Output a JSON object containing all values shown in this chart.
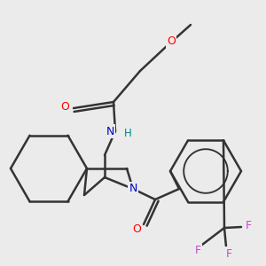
{
  "bg_color": "#ebebeb",
  "atom_colors": {
    "O": "#ff0000",
    "N": "#0000cc",
    "F": "#cc44cc",
    "H_on_N": "#008888",
    "C": "#333333"
  },
  "bond_color": "#333333",
  "bond_width": 1.8
}
